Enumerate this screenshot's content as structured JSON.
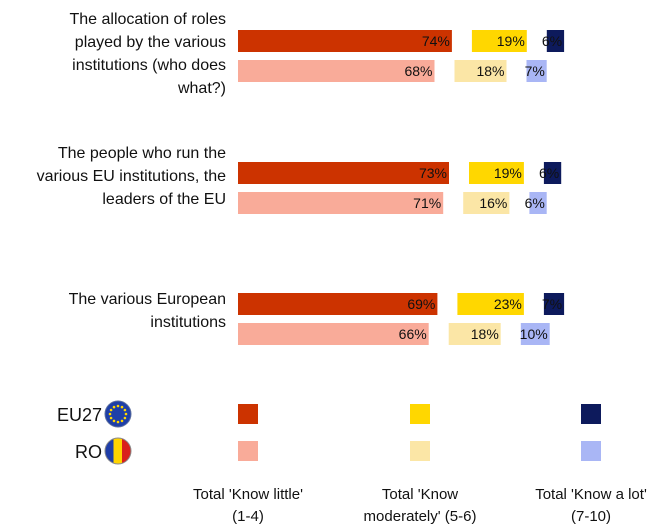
{
  "chart_data": {
    "type": "bar",
    "orientation": "horizontal",
    "stacked": true,
    "title": "",
    "xlim": [
      0,
      100
    ],
    "categories": [
      [
        "The allocation of roles",
        "played by the various",
        "institutions (who does",
        "what?)"
      ],
      [
        "The people who run the",
        "various EU institutions, the",
        "leaders of the EU"
      ],
      [
        "The various European",
        "institutions"
      ]
    ],
    "groups": [
      {
        "name": "EU27",
        "series": [
          {
            "name": "Total 'Know little' (1-4)",
            "color": "#cc3300",
            "values": [
              74,
              73,
              69
            ]
          },
          {
            "name": "Total 'Know moderately' (5-6)",
            "color": "#ffd700",
            "values": [
              19,
              19,
              23
            ]
          },
          {
            "name": "Total 'Know a lot' (7-10)",
            "color": "#0d1a5c",
            "values": [
              6,
              6,
              7
            ]
          }
        ]
      },
      {
        "name": "RO",
        "series": [
          {
            "name": "Total 'Know little' (1-4)",
            "color": "#f9ab99",
            "values": [
              68,
              71,
              66
            ]
          },
          {
            "name": "Total 'Know moderately' (5-6)",
            "color": "#fbe6a6",
            "values": [
              18,
              16,
              18
            ]
          },
          {
            "name": "Total 'Know a lot' (7-10)",
            "color": "#a9b6f5",
            "values": [
              7,
              6,
              10
            ]
          }
        ]
      }
    ],
    "legend_placement": "bottom"
  },
  "legend": {
    "rows": [
      {
        "label": "EU27",
        "icon": "eu-flag-icon"
      },
      {
        "label": "RO",
        "icon": "romania-flag-icon"
      }
    ],
    "columns": [
      [
        "Total 'Know little'",
        "(1-4)"
      ],
      [
        "Total 'Know",
        "moderately' (5-6)"
      ],
      [
        "Total 'Know a lot'",
        "(7-10)"
      ]
    ]
  }
}
